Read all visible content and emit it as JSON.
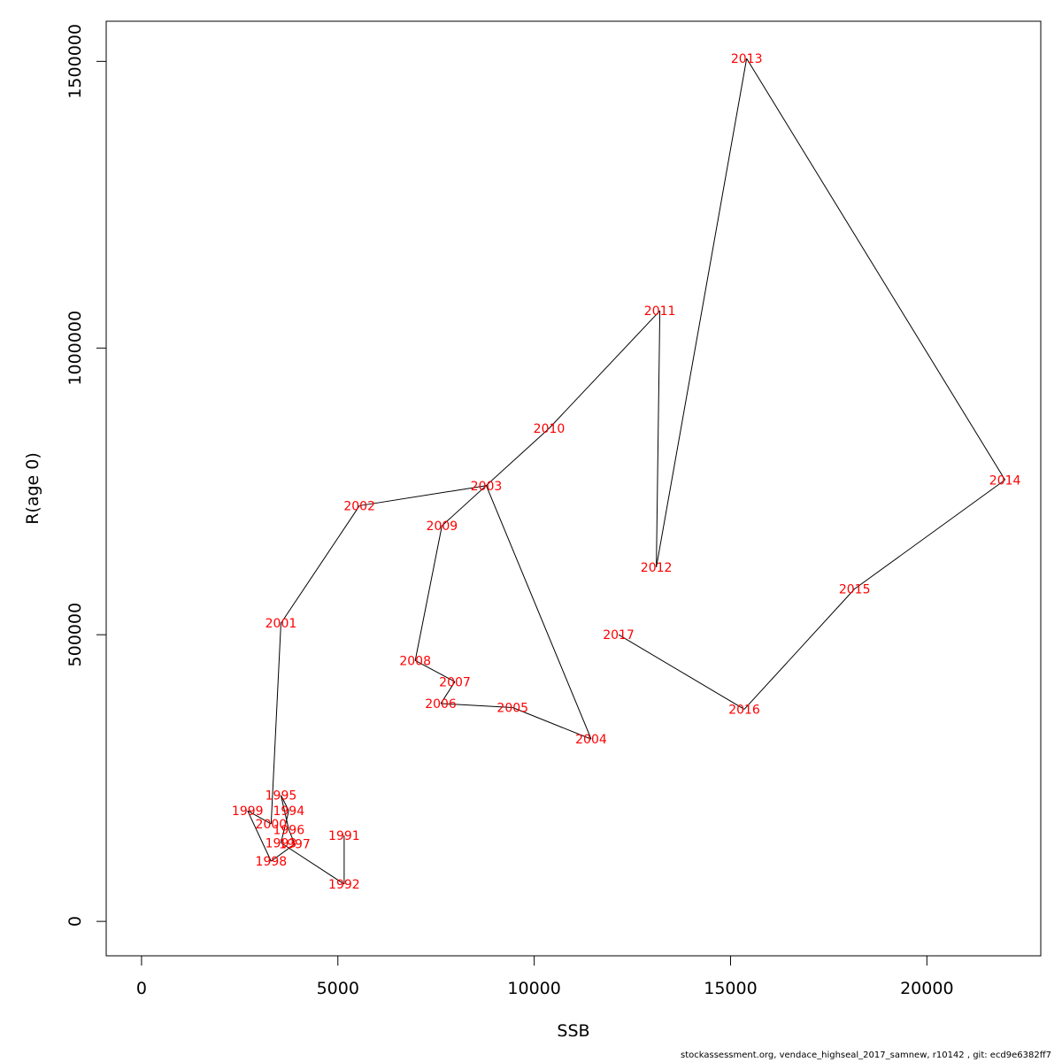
{
  "chart_data": {
    "type": "line",
    "xlabel": "SSB",
    "ylabel": "R(age 0)",
    "xlim": [
      -900,
      22900
    ],
    "ylim": [
      -60000,
      1570000
    ],
    "x_ticks": [
      0,
      5000,
      10000,
      15000,
      20000
    ],
    "y_ticks": [
      0,
      500000,
      1000000,
      1500000
    ],
    "grid": false,
    "line_color": "#000000",
    "label_color": "#ff0000",
    "points": [
      {
        "year": "1991",
        "x": 5160,
        "y": 150000
      },
      {
        "year": "1992",
        "x": 5160,
        "y": 65000
      },
      {
        "year": "1993",
        "x": 3550,
        "y": 137000
      },
      {
        "year": "1994",
        "x": 3750,
        "y": 193000
      },
      {
        "year": "1995",
        "x": 3550,
        "y": 220000
      },
      {
        "year": "1996",
        "x": 3750,
        "y": 160000
      },
      {
        "year": "1997",
        "x": 3900,
        "y": 135000
      },
      {
        "year": "1998",
        "x": 3300,
        "y": 105000
      },
      {
        "year": "1999",
        "x": 2700,
        "y": 193000
      },
      {
        "year": "2000",
        "x": 3300,
        "y": 170000
      },
      {
        "year": "2001",
        "x": 3550,
        "y": 520000
      },
      {
        "year": "2002",
        "x": 5550,
        "y": 725000
      },
      {
        "year": "2003",
        "x": 8780,
        "y": 760000
      },
      {
        "year": "2004",
        "x": 11450,
        "y": 318000
      },
      {
        "year": "2005",
        "x": 9450,
        "y": 373000
      },
      {
        "year": "2006",
        "x": 7620,
        "y": 380000
      },
      {
        "year": "2007",
        "x": 7980,
        "y": 418000
      },
      {
        "year": "2008",
        "x": 6970,
        "y": 455000
      },
      {
        "year": "2009",
        "x": 7650,
        "y": 690000
      },
      {
        "year": "2010",
        "x": 10380,
        "y": 860000
      },
      {
        "year": "2011",
        "x": 13200,
        "y": 1065000
      },
      {
        "year": "2012",
        "x": 13110,
        "y": 618000
      },
      {
        "year": "2013",
        "x": 15410,
        "y": 1505000
      },
      {
        "year": "2014",
        "x": 21990,
        "y": 770000
      },
      {
        "year": "2015",
        "x": 18160,
        "y": 580000
      },
      {
        "year": "2016",
        "x": 15350,
        "y": 370000
      },
      {
        "year": "2017",
        "x": 12150,
        "y": 500000
      }
    ]
  },
  "footer_text": "stockassessment.org, vendace_highseal_2017_samnew, r10142 , git: ecd9e6382ff7"
}
